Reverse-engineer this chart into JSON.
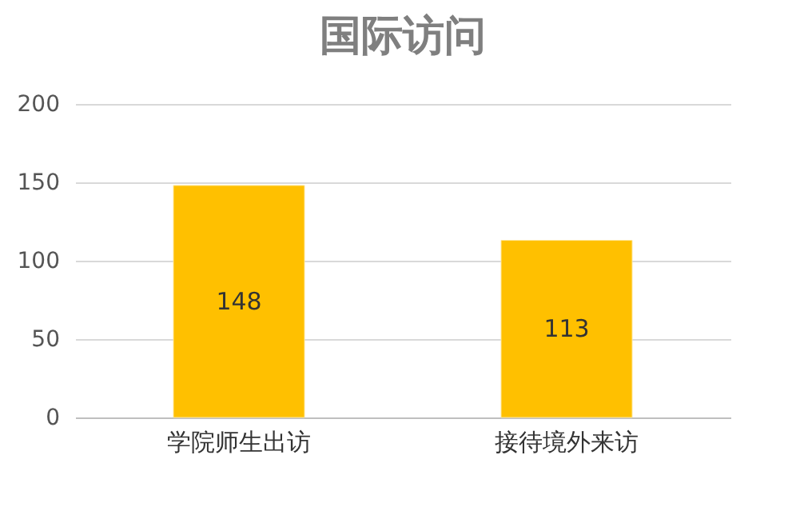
{
  "chart_data": {
    "type": "bar",
    "title": "国际访问",
    "categories": [
      "学院师生出访",
      "接待境外来访"
    ],
    "values": [
      148,
      113
    ],
    "color": "#ffc000",
    "ylim": [
      0,
      200
    ],
    "yticks": [
      0,
      50,
      100,
      150,
      200
    ],
    "grid": "y",
    "data_labels": true
  }
}
